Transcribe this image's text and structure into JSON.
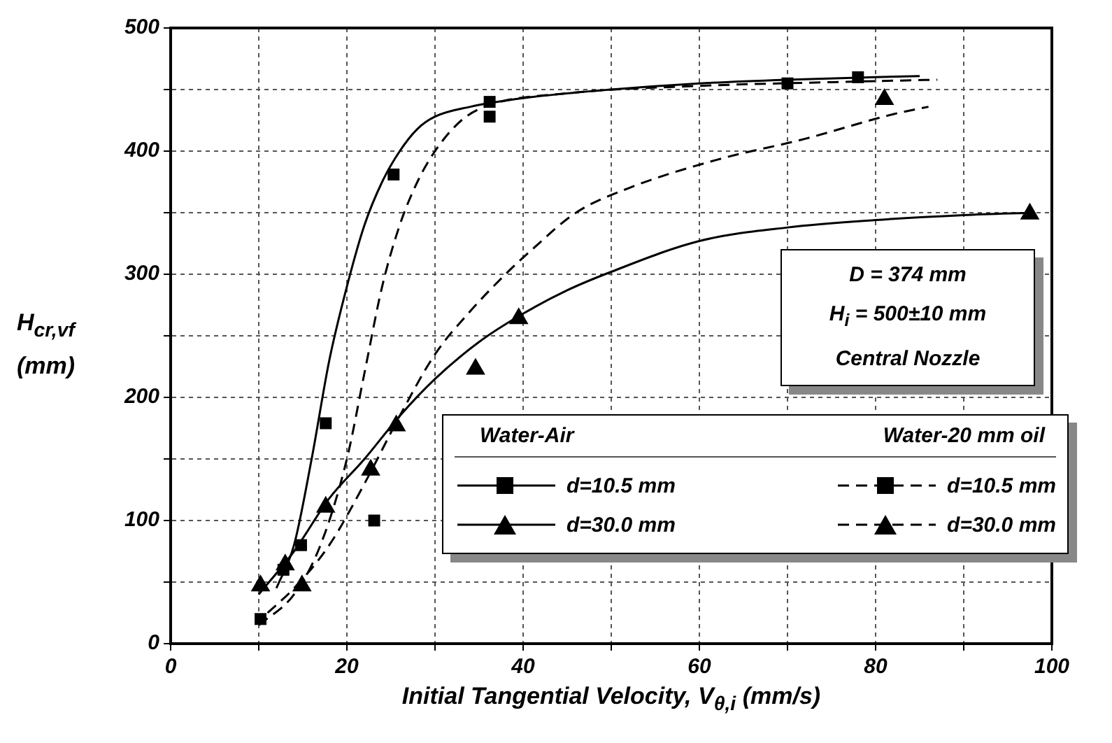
{
  "chart_data": {
    "type": "scatter",
    "xlabel": "Initial Tangential Velocity, V$_{θ,i}$ (mm/s)",
    "ylabel": "H$_{cr,vf}$ (mm)",
    "xlim": [
      0,
      100
    ],
    "ylim": [
      0,
      500
    ],
    "xticks": [
      0,
      {
        "value": 10,
        "label": null
      },
      20,
      {
        "value": 30,
        "label": null
      },
      40,
      {
        "value": 50,
        "label": null
      },
      60,
      {
        "value": 70,
        "label": null
      },
      80,
      {
        "value": 90,
        "label": null
      },
      100
    ],
    "yticks": [
      0,
      {
        "value": 50,
        "label": null
      },
      100,
      {
        "value": 150,
        "label": null
      },
      200,
      {
        "value": 250,
        "label": null
      },
      300,
      {
        "value": 350,
        "label": null
      },
      400,
      {
        "value": 450,
        "label": null
      },
      500
    ],
    "grid": true,
    "legend": "bottom right",
    "annotations": [
      "Water-Air",
      "Water-20 mm oil",
      "D = 374 mm",
      "H$_{i}$ = 500±10 mm",
      "Central Nozzle"
    ],
    "series": [
      {
        "name": "d=10.5 mm",
        "marker": "square",
        "color": "#000000",
        "x": [
          12.8,
          14.8,
          17.6,
          25.3,
          36.2,
          70
        ],
        "values": [
          60,
          80,
          179,
          381,
          440,
          455
        ]
      },
      {
        "type": "line",
        "marker": "none",
        "line_style": "solid",
        "color": "#000000",
        "x": [
          12,
          14,
          16,
          18,
          20,
          22,
          24,
          26,
          28,
          30,
          34,
          40,
          50,
          60,
          70,
          85
        ],
        "values": [
          45,
          80,
          150,
          230,
          290,
          340,
          375,
          400,
          418,
          428,
          436,
          443,
          450,
          455,
          458,
          461
        ]
      },
      {
        "name": "d=30.0 mm",
        "marker": "triangle",
        "color": "#000000",
        "x": [
          10.2,
          13,
          17.6,
          25.6,
          39.5,
          97.5
        ],
        "values": [
          47,
          64,
          111,
          177,
          264,
          349
        ]
      },
      {
        "type": "line",
        "marker": "none",
        "line_style": "solid",
        "color": "#000000",
        "x": [
          10,
          14,
          18,
          22,
          26,
          30,
          35,
          40,
          45,
          50,
          60,
          70,
          80,
          90,
          98
        ],
        "values": [
          40,
          75,
          118,
          150,
          185,
          215,
          245,
          268,
          287,
          302,
          327,
          338,
          344,
          348,
          350
        ]
      },
      {
        "name": "d=10.5 mm",
        "marker": "square",
        "color": "#000000",
        "x": [
          10.2,
          23.1,
          36.2,
          78
        ],
        "values": [
          20,
          100,
          428,
          460
        ]
      },
      {
        "type": "line",
        "marker": "none",
        "line_style": "dashed",
        "color": "#000000",
        "x": [
          10,
          14,
          17,
          20,
          22,
          24,
          26,
          28,
          30,
          33,
          36,
          45,
          60,
          75,
          87
        ],
        "values": [
          15,
          40,
          80,
          150,
          220,
          290,
          340,
          375,
          400,
          425,
          437,
          447,
          453,
          456,
          458
        ]
      },
      {
        "name": "d=30.0 mm",
        "marker": "triangle",
        "color": "#000000",
        "x": [
          14.9,
          22.7,
          34.6,
          81
        ],
        "values": [
          47,
          141,
          223,
          442
        ]
      },
      {
        "type": "line",
        "marker": "none",
        "line_style": "dashed",
        "color": "#000000",
        "x": [
          11,
          14,
          18,
          22,
          26,
          30,
          34,
          38,
          41,
          46,
          52,
          62,
          72,
          82,
          86
        ],
        "values": [
          25,
          45,
          80,
          130,
          185,
          235,
          270,
          300,
          320,
          350,
          370,
          393,
          410,
          430,
          436
        ]
      }
    ]
  }
}
